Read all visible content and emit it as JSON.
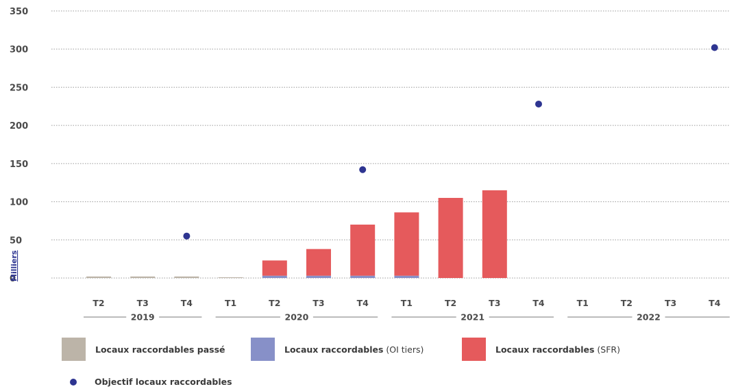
{
  "chart_data": {
    "type": "bar",
    "ylabel": "Milliers",
    "ylim": [
      0,
      350
    ],
    "yticks": [
      0,
      50,
      100,
      150,
      200,
      250,
      300,
      350
    ],
    "grid": true,
    "categories": [
      "T2",
      "T3",
      "T4",
      "T1",
      "T2",
      "T3",
      "T4",
      "T1",
      "T2",
      "T3",
      "T4",
      "T1",
      "T2",
      "T3",
      "T4"
    ],
    "year_groups": [
      {
        "label": "2019",
        "start": 0,
        "end": 2
      },
      {
        "label": "2020",
        "start": 3,
        "end": 6
      },
      {
        "label": "2021",
        "start": 7,
        "end": 10
      },
      {
        "label": "2022",
        "start": 11,
        "end": 14
      }
    ],
    "series": [
      {
        "name": "Locaux raccordables passé",
        "kind": "bar",
        "color": "#bcb4a8",
        "values": [
          2,
          2,
          2,
          1,
          null,
          null,
          null,
          null,
          null,
          null,
          null,
          null,
          null,
          null,
          null
        ]
      },
      {
        "name": "Locaux raccordables (OI tiers)",
        "kind": "bar",
        "color": "#8790c8",
        "values": [
          null,
          null,
          null,
          null,
          3,
          3,
          3,
          3,
          null,
          null,
          null,
          null,
          null,
          null,
          null
        ]
      },
      {
        "name": "Locaux raccordables (SFR)",
        "kind": "bar",
        "color": "#e55a5c",
        "values": [
          null,
          null,
          null,
          null,
          20,
          35,
          67,
          83,
          105,
          115,
          null,
          null,
          null,
          null,
          null
        ]
      },
      {
        "name": "Objectif locaux raccordables",
        "kind": "point",
        "color": "#2e3591",
        "values": [
          null,
          null,
          55,
          null,
          null,
          null,
          142,
          null,
          null,
          null,
          228,
          null,
          null,
          null,
          302
        ]
      }
    ]
  },
  "legend": {
    "past_label": "Locaux raccordables passé",
    "tiers_bold": "Locaux raccordables",
    "tiers_light": " (OI tiers)",
    "sfr_bold": "Locaux raccordables",
    "sfr_light": " (SFR)",
    "objective_label": "Objectif locaux raccordables"
  }
}
